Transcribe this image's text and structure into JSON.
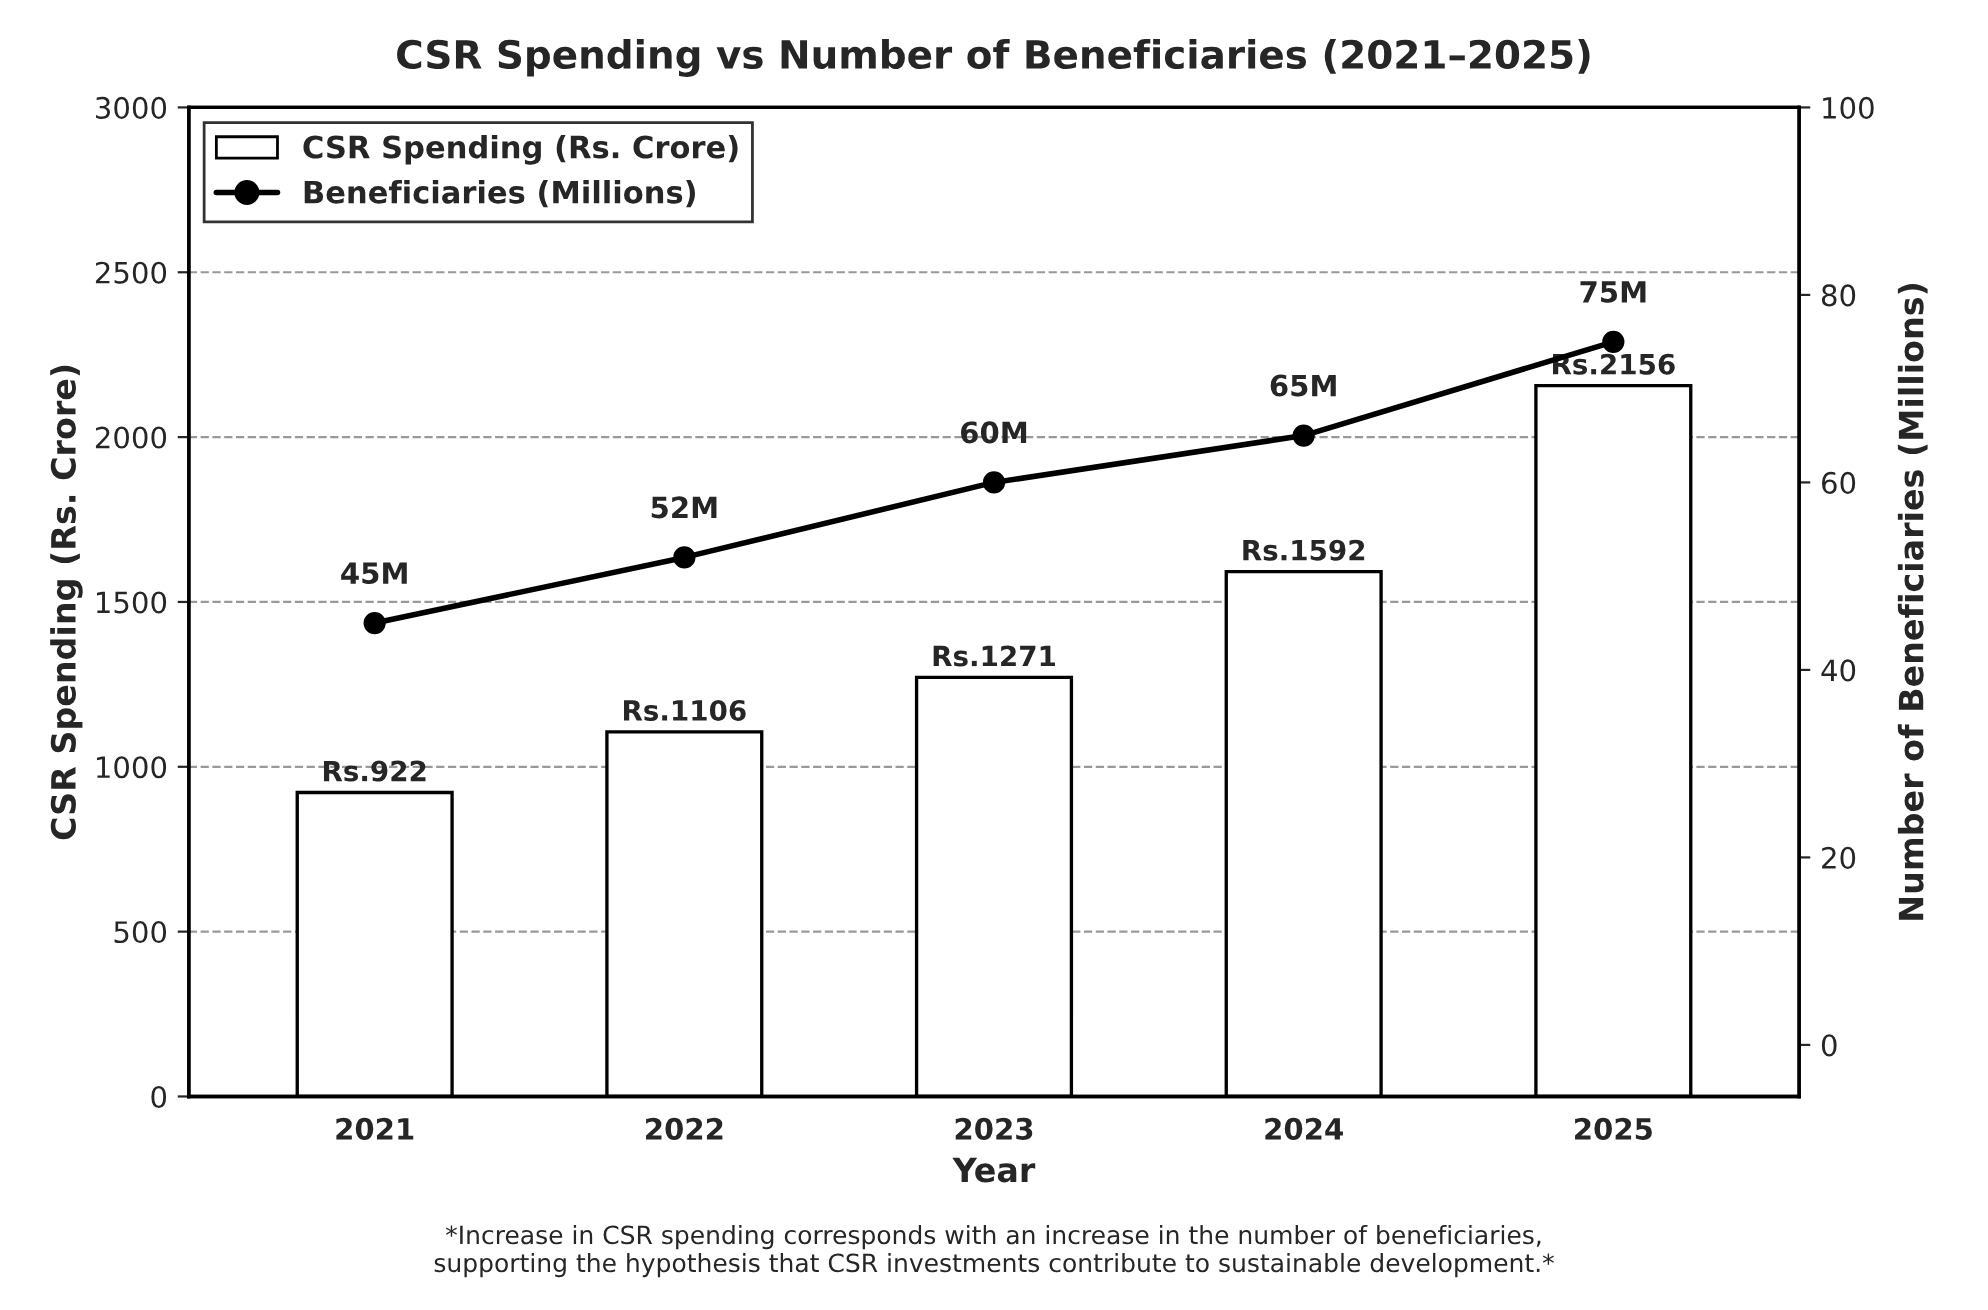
{
  "chart_data": {
    "type": "bar",
    "title": "CSR Spending vs Number of Beneficiaries (2021–2025)",
    "xlabel": "Year",
    "ylabel": "CSR Spending (Rs. Crore)",
    "y2label": "Number of Beneficiaries (Millions)",
    "categories": [
      "2021",
      "2022",
      "2023",
      "2024",
      "2025"
    ],
    "series": [
      {
        "name": "CSR Spending (Rs. Crore)",
        "color": "#ffffff",
        "values": [
          922,
          1106,
          1271,
          1592,
          2156
        ],
        "value_labels": [
          "Rs.922",
          "Rs.1106",
          "Rs.1271",
          "Rs.1592",
          "Rs.2156"
        ]
      },
      {
        "name": "Beneficiaries (Millions)",
        "type": "line",
        "axis": "y2",
        "color": "#000000",
        "marker": "circle",
        "line_style": "solid",
        "values": [
          45,
          52,
          60,
          65,
          75
        ],
        "value_labels": [
          "45M",
          "52M",
          "60M",
          "65M",
          "75M"
        ]
      }
    ],
    "ylim": [
      0,
      3000
    ],
    "yticks": [
      0,
      500,
      1000,
      1500,
      2000,
      2500,
      3000
    ],
    "y2lim": [
      -5.5,
      100
    ],
    "y2ticks": [
      0,
      20,
      40,
      60,
      80,
      100
    ],
    "grid": "y",
    "legend": "top left",
    "annotations": [
      "*Increase in CSR spending corresponds with an increase in the number of beneficiaries,\nsupporting the hypothesis that CSR investments contribute to sustainable development.*"
    ]
  }
}
